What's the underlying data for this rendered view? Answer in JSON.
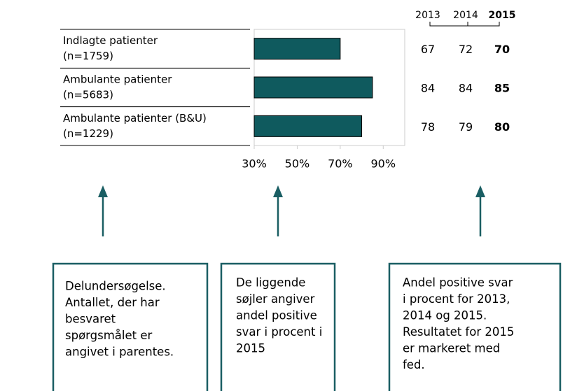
{
  "chart_data": {
    "type": "bar",
    "orientation": "horizontal",
    "categories": [
      [
        "Indlagte patienter",
        "(n=1759)"
      ],
      [
        "Ambulante patienter",
        "(n=5683)"
      ],
      [
        "Ambulante patienter (B&U)",
        "(n=1229)"
      ]
    ],
    "values": [
      70,
      85,
      80
    ],
    "color": "#0f5a5e",
    "xlim": [
      30,
      100
    ],
    "xticks": [
      {
        "value": 30,
        "label": "30%"
      },
      {
        "value": 50,
        "label": "50%"
      },
      {
        "value": 70,
        "label": "70%"
      },
      {
        "value": 90,
        "label": "90%"
      }
    ]
  },
  "table": {
    "columns": [
      "2013",
      "2014",
      "2015"
    ],
    "rows": [
      [
        67,
        72,
        70
      ],
      [
        84,
        84,
        85
      ],
      [
        78,
        79,
        80
      ]
    ]
  },
  "annotations": [
    [
      "Delundersøgelse.",
      "Antallet, der har",
      "besvaret",
      "spørgsmålet er",
      "angivet i parentes."
    ],
    [
      "De liggende",
      "søjler angiver",
      "andel positive",
      "svar i procent i",
      "2015"
    ],
    [
      "Andel positive svar",
      "i procent for 2013,",
      "2014 og 2015.",
      "Resultatet for 2015",
      "er markeret med",
      "fed."
    ]
  ]
}
